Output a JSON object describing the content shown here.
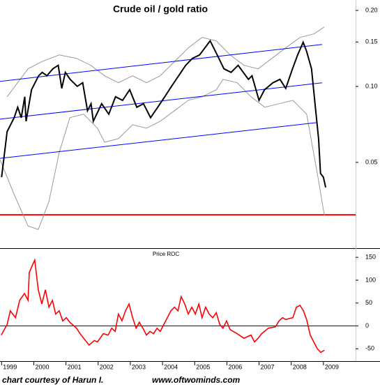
{
  "chart_data": [
    {
      "type": "line",
      "title": "Crude oil / gold ratio",
      "log_scale": true,
      "xlim": [
        1998.95,
        2010.0
      ],
      "ylim": [
        0.023,
        0.22
      ],
      "yticks": [
        {
          "value": 0.2,
          "label": "0.20"
        },
        0.15,
        {
          "value": 0.1,
          "label": "0.10"
        },
        0.05
      ],
      "hlines": [
        {
          "value": 0.031,
          "color": "#ff0000"
        }
      ],
      "series": [
        {
          "color": "#999999",
          "x": [
            1999.17,
            1999.82,
            2000.25,
            2000.79,
            2001.33,
            2001.77,
            2002.2,
            2002.63,
            2003.07,
            2003.5,
            2003.93,
            2004.37,
            2004.8,
            2005.23,
            2005.67,
            2006.1,
            2006.53,
            2006.97,
            2007.4,
            2007.83,
            2008.27,
            2008.7,
            2009.03
          ],
          "values": [
            0.091,
            0.1174,
            0.1254,
            0.1333,
            0.1292,
            0.1212,
            0.1102,
            0.1034,
            0.1102,
            0.1034,
            0.1102,
            0.1254,
            0.1421,
            0.1563,
            0.1515,
            0.1333,
            0.1212,
            0.1174,
            0.1292,
            0.1421,
            0.1563,
            0.1614,
            0.172
          ]
        },
        {
          "color": "#999999",
          "x": [
            1998.95,
            1999.39,
            1999.82,
            2000.14,
            2000.47,
            2000.79,
            2001.12,
            2001.55,
            2001.98,
            2002.2,
            2002.63,
            2003.07,
            2003.5,
            2003.93,
            2004.37,
            2004.8,
            2005.23,
            2005.67,
            2005.88,
            2006.32,
            2006.75,
            2007.18,
            2007.62,
            2008.05,
            2008.48,
            2008.81,
            2009.03
          ],
          "values": [
            0.0513,
            0.0373,
            0.028,
            0.0271,
            0.035,
            0.0547,
            0.0752,
            0.0776,
            0.0683,
            0.0601,
            0.0621,
            0.0705,
            0.0683,
            0.0728,
            0.0801,
            0.0881,
            0.091,
            0.097,
            0.1067,
            0.1034,
            0.091,
            0.0827,
            0.0854,
            0.0881,
            0.0776,
            0.0452,
            0.0308
          ]
        },
        {
          "color": "#0000ff",
          "x": [
            1998.95,
            2008.96
          ],
          "values": [
            0.1047,
            0.1467
          ]
        },
        {
          "color": "#0000ff",
          "x": [
            1998.95,
            2008.96
          ],
          "values": [
            0.0742,
            0.1034
          ]
        },
        {
          "color": "#0000ff",
          "x": [
            1998.95,
            2008.81
          ],
          "values": [
            0.0519,
            0.0719
          ]
        },
        {
          "color": "#000000",
          "x": [
            1999.0,
            1999.17,
            1999.39,
            1999.5,
            1999.61,
            1999.72,
            1999.76,
            1999.93,
            2000.04,
            2000.15,
            2000.26,
            2000.41,
            2000.59,
            2000.76,
            2000.87,
            2000.98,
            2001.13,
            2001.35,
            2001.52,
            2001.67,
            2001.78,
            2001.85,
            2002.11,
            2002.33,
            2002.54,
            2002.76,
            2002.98,
            2003.2,
            2003.41,
            2003.63,
            2003.85,
            2004.07,
            2004.28,
            2004.5,
            2004.72,
            2004.93,
            2005.15,
            2005.48,
            2005.7,
            2005.91,
            2006.13,
            2006.35,
            2006.67,
            2006.78,
            2007.0,
            2007.17,
            2007.43,
            2007.65,
            2007.83,
            2008.04,
            2008.2,
            2008.37,
            2008.48,
            2008.63,
            2008.74,
            2008.85,
            2008.91,
            2009.0,
            2009.07
          ],
          "values": [
            0.0437,
            0.0662,
            0.0752,
            0.0827,
            0.0752,
            0.091,
            0.0728,
            0.097,
            0.1034,
            0.1102,
            0.1137,
            0.1102,
            0.1174,
            0.1212,
            0.0982,
            0.1137,
            0.1067,
            0.1001,
            0.1034,
            0.0801,
            0.0854,
            0.0728,
            0.0854,
            0.0776,
            0.091,
            0.0881,
            0.097,
            0.0827,
            0.0854,
            0.0752,
            0.0827,
            0.091,
            0.1001,
            0.1102,
            0.1212,
            0.1292,
            0.1333,
            0.1515,
            0.1333,
            0.1174,
            0.1137,
            0.1212,
            0.1067,
            0.1102,
            0.0881,
            0.097,
            0.1034,
            0.1067,
            0.0982,
            0.1174,
            0.1333,
            0.1496,
            0.1376,
            0.1174,
            0.0854,
            0.0621,
            0.0452,
            0.0437,
            0.0398
          ]
        }
      ]
    },
    {
      "type": "line",
      "title": "Price ROC",
      "xlim": [
        1998.95,
        2010.0
      ],
      "ylim": [
        -77,
        167
      ],
      "yticks": [
        150,
        100,
        50,
        0,
        -50
      ],
      "xticks": [
        1999,
        2000,
        2001,
        2002,
        2003,
        2004,
        2005,
        2006,
        2007,
        2008,
        2009
      ],
      "hlines": [
        {
          "value": 0,
          "color": "#0000ff"
        }
      ],
      "series": [
        {
          "color": "#ff0000",
          "x": [
            1998.99,
            1999.17,
            1999.27,
            1999.43,
            1999.56,
            1999.71,
            1999.82,
            1999.86,
            1999.95,
            2000.03,
            2000.14,
            2000.25,
            2000.36,
            2000.47,
            2000.58,
            2000.68,
            2000.79,
            2000.9,
            2001.01,
            2001.12,
            2001.33,
            2001.44,
            2001.55,
            2001.72,
            2001.88,
            2001.98,
            2002.16,
            2002.31,
            2002.42,
            2002.53,
            2002.63,
            2002.74,
            2002.85,
            2002.96,
            2003.07,
            2003.18,
            2003.28,
            2003.39,
            2003.5,
            2003.61,
            2003.72,
            2003.83,
            2003.93,
            2004.04,
            2004.15,
            2004.26,
            2004.37,
            2004.48,
            2004.58,
            2004.69,
            2004.8,
            2004.91,
            2005.02,
            2005.13,
            2005.23,
            2005.34,
            2005.45,
            2005.56,
            2005.67,
            2005.78,
            2005.88,
            2005.99,
            2006.1,
            2006.32,
            2006.53,
            2006.75,
            2006.86,
            2006.97,
            2007.08,
            2007.29,
            2007.51,
            2007.62,
            2007.73,
            2007.83,
            2008.05,
            2008.16,
            2008.27,
            2008.38,
            2008.48,
            2008.59,
            2008.7,
            2008.81,
            2008.92,
            2009.03
          ],
          "values": [
            -20,
            3,
            33,
            18,
            56,
            71,
            56,
            117,
            132,
            144,
            79,
            48,
            79,
            41,
            56,
            26,
            33,
            11,
            18,
            8,
            -5,
            -17,
            -27,
            -42,
            -32,
            -35,
            -17,
            -20,
            -5,
            -12,
            26,
            11,
            33,
            48,
            18,
            -5,
            8,
            -5,
            -20,
            -12,
            -17,
            -5,
            -12,
            3,
            18,
            33,
            41,
            33,
            64,
            48,
            26,
            41,
            26,
            48,
            18,
            41,
            26,
            18,
            29,
            3,
            -5,
            11,
            -8,
            -17,
            -27,
            -20,
            -35,
            -27,
            -17,
            -5,
            -2,
            11,
            18,
            14,
            18,
            41,
            45,
            33,
            14,
            -20,
            -35,
            -50,
            -58,
            -53
          ]
        }
      ]
    }
  ],
  "credit": "chart courtesy of Harun I.",
  "source": "www.oftwominds.com"
}
